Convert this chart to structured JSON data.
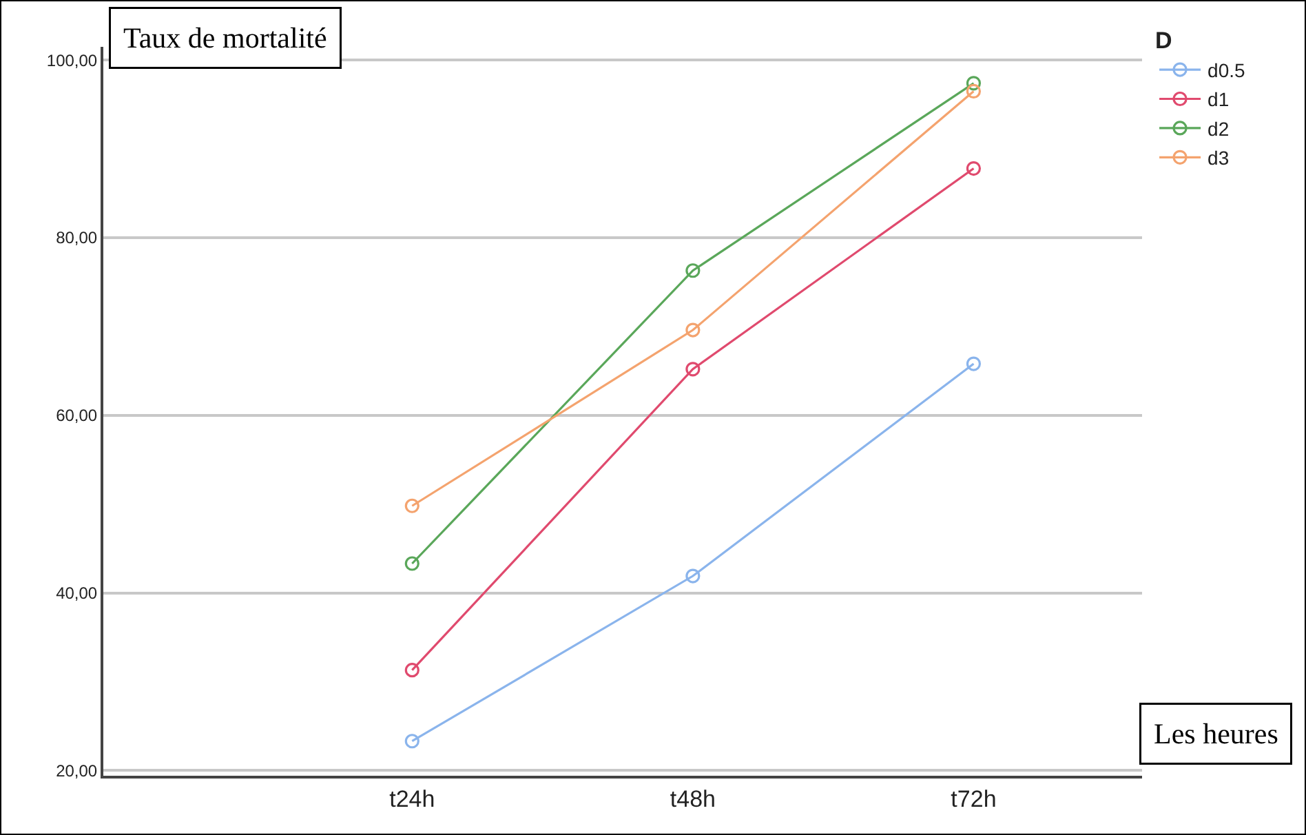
{
  "chart_data": {
    "type": "line",
    "ylabel": "Taux de mortalité",
    "xlabel": "Les heures",
    "legend_title": "D",
    "categories": [
      "t24h",
      "t48h",
      "t72h"
    ],
    "series": [
      {
        "name": "d0.5",
        "color": "#8ab4ec",
        "values": [
          23.3,
          41.9,
          65.8
        ]
      },
      {
        "name": "d1",
        "color": "#e04a6e",
        "values": [
          31.3,
          65.2,
          87.8
        ]
      },
      {
        "name": "d2",
        "color": "#5aa75a",
        "values": [
          43.3,
          76.3,
          97.4
        ]
      },
      {
        "name": "d3",
        "color": "#f4a36e",
        "values": [
          49.8,
          69.6,
          96.5
        ]
      }
    ],
    "ylim": [
      19.4,
      101.5
    ],
    "yticks": [
      {
        "value": 20,
        "label": "20,00"
      },
      {
        "value": 40,
        "label": "40,00"
      },
      {
        "value": 60,
        "label": "60,00"
      },
      {
        "value": 80,
        "label": "80,00"
      },
      {
        "value": 100,
        "label": "100,00"
      }
    ],
    "grid": "y",
    "legend": "top right",
    "marker": "circle",
    "line_style": "solid"
  }
}
